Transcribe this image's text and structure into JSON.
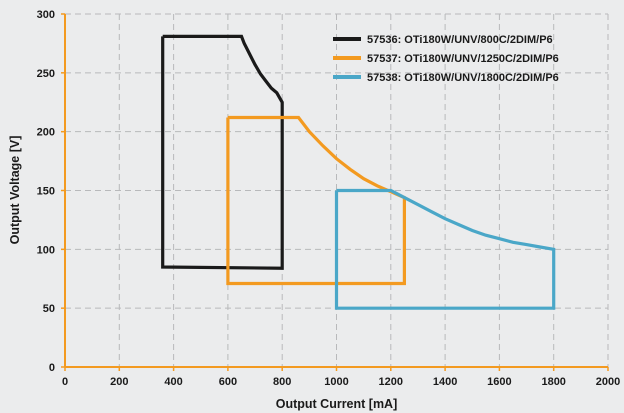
{
  "chart_data": {
    "type": "line",
    "xlabel": "Output Current [mA]",
    "ylabel": "Output Voltage [V]",
    "xlim": [
      0,
      2000
    ],
    "ylim": [
      0,
      300
    ],
    "x_ticks": [
      "0",
      "200",
      "400",
      "600",
      "800",
      "1000",
      "1200",
      "1400",
      "1600",
      "1800",
      "2000"
    ],
    "y_ticks": [
      "0",
      "50",
      "100",
      "150",
      "200",
      "250",
      "300"
    ],
    "grid": true,
    "grid_style": "dashed",
    "legend_position": "top-right",
    "axis_color": "#f39a20",
    "series": [
      {
        "name": "57536: OTi180W/UNV/800C/2DIM/P6",
        "color": "#1a1a1a",
        "points": [
          [
            360,
            281
          ],
          [
            650,
            281
          ],
          [
            660,
            275
          ],
          [
            680,
            266
          ],
          [
            700,
            257
          ],
          [
            720,
            249
          ],
          [
            740,
            243
          ],
          [
            760,
            237
          ],
          [
            780,
            233
          ],
          [
            800,
            225
          ],
          [
            800,
            84
          ],
          [
            360,
            85
          ],
          [
            360,
            281
          ]
        ]
      },
      {
        "name": "57537: OTi180W/UNV/1250C/2DIM/P6",
        "color": "#f39a20",
        "points": [
          [
            600,
            212
          ],
          [
            860,
            212
          ],
          [
            900,
            200
          ],
          [
            950,
            188
          ],
          [
            1000,
            177
          ],
          [
            1050,
            168
          ],
          [
            1100,
            160
          ],
          [
            1150,
            154
          ],
          [
            1200,
            149
          ],
          [
            1250,
            144
          ],
          [
            1250,
            71
          ],
          [
            600,
            71
          ],
          [
            600,
            212
          ]
        ]
      },
      {
        "name": "57538: OTi180W/UNV/1800C/2DIM/P6",
        "color": "#4aa7c8",
        "points": [
          [
            1000,
            150
          ],
          [
            1200,
            150
          ],
          [
            1250,
            144
          ],
          [
            1300,
            138
          ],
          [
            1350,
            132
          ],
          [
            1400,
            126
          ],
          [
            1450,
            121
          ],
          [
            1500,
            116
          ],
          [
            1550,
            112
          ],
          [
            1600,
            109
          ],
          [
            1650,
            106
          ],
          [
            1700,
            104
          ],
          [
            1750,
            102
          ],
          [
            1800,
            100
          ],
          [
            1800,
            50
          ],
          [
            1000,
            50
          ],
          [
            1000,
            150
          ]
        ]
      }
    ]
  }
}
